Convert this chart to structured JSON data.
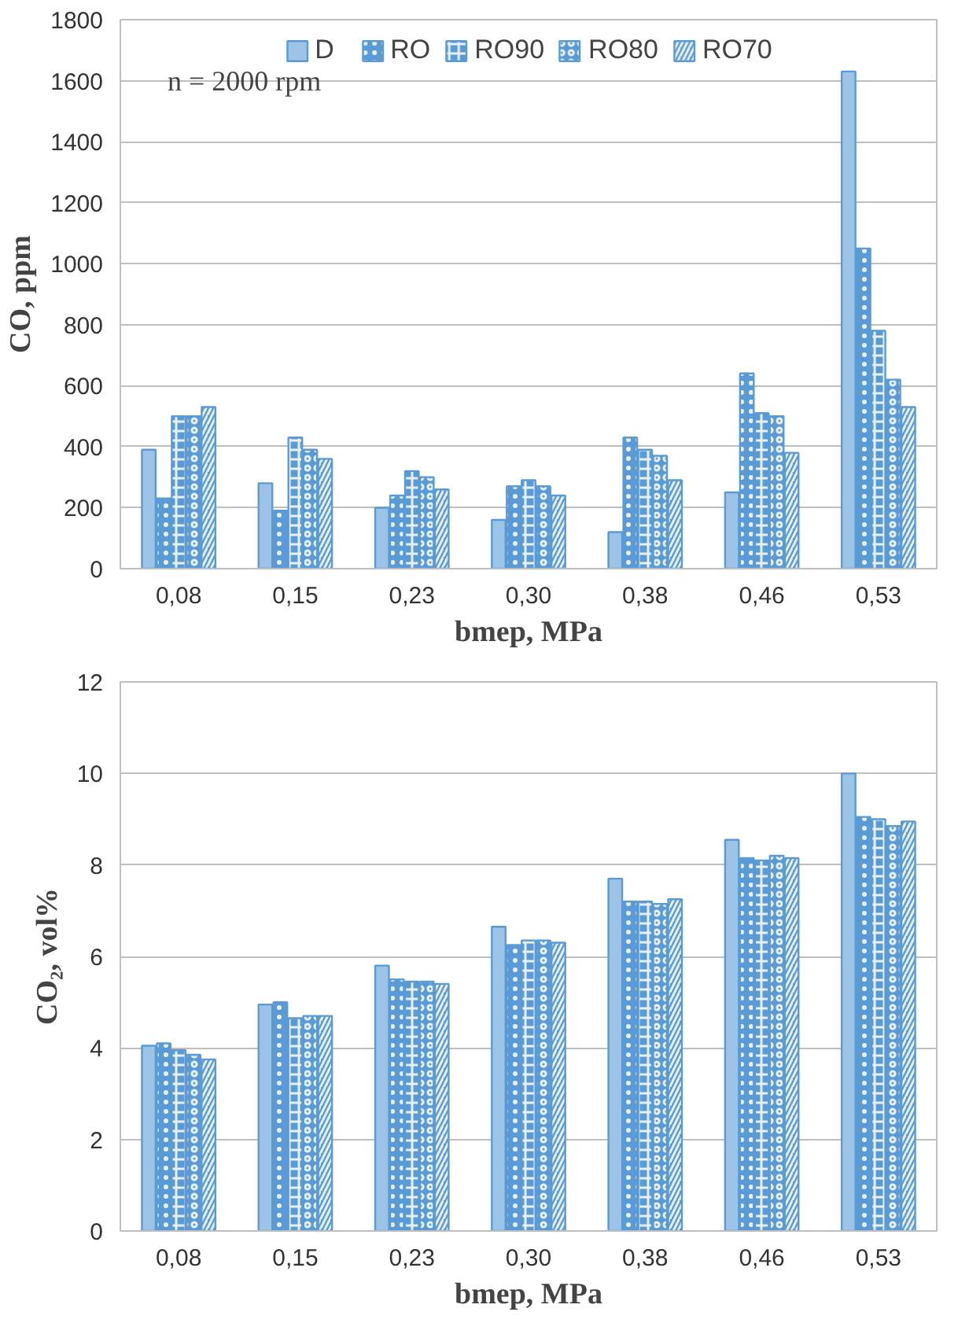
{
  "chart_data": [
    {
      "type": "bar",
      "ylabel": "CO, ppm",
      "xlabel": "bmep, MPa",
      "categories": [
        "0,08",
        "0,15",
        "0,23",
        "0,30",
        "0,38",
        "0,46",
        "0,53"
      ],
      "ylim": [
        0,
        1800
      ],
      "yticks": [
        0,
        200,
        400,
        600,
        800,
        1000,
        1200,
        1400,
        1600,
        1800
      ],
      "grid": "y",
      "legend": "top",
      "annotations": [
        "n = 2000 rpm"
      ],
      "series": [
        {
          "name": "D",
          "color": "#9dc3e6",
          "values": [
            390,
            280,
            200,
            160,
            120,
            250,
            1630
          ]
        },
        {
          "name": "RO",
          "color": "#5b9bd5",
          "values": [
            230,
            190,
            240,
            270,
            430,
            640,
            1050
          ]
        },
        {
          "name": "RO90",
          "color": "#5b9bd5",
          "values": [
            500,
            430,
            320,
            290,
            390,
            510,
            780
          ]
        },
        {
          "name": "RO80",
          "color": "#5b9bd5",
          "values": [
            500,
            390,
            300,
            270,
            370,
            500,
            620
          ]
        },
        {
          "name": "RO70",
          "color": "#5b9bd5",
          "values": [
            530,
            360,
            260,
            240,
            290,
            380,
            530
          ]
        }
      ]
    },
    {
      "type": "bar",
      "ylabel": "CO₂, vol%",
      "xlabel": "bmep, MPa",
      "categories": [
        "0,08",
        "0,15",
        "0,23",
        "0,30",
        "0,38",
        "0,46",
        "0,53"
      ],
      "ylim": [
        0,
        12
      ],
      "yticks": [
        0,
        2,
        4,
        6,
        8,
        10,
        12
      ],
      "grid": "y",
      "series": [
        {
          "color": "#9dc3e6",
          "values": [
            4.05,
            4.95,
            5.8,
            6.65,
            7.7,
            8.55,
            10.0
          ]
        },
        {
          "color": "#5b9bd5",
          "values": [
            4.1,
            5.0,
            5.5,
            6.25,
            7.2,
            8.15,
            9.05
          ]
        },
        {
          "color": "#5b9bd5",
          "values": [
            3.95,
            4.65,
            5.45,
            6.35,
            7.2,
            8.1,
            9.0
          ]
        },
        {
          "color": "#5b9bd5",
          "values": [
            3.85,
            4.7,
            5.45,
            6.35,
            7.15,
            8.2,
            8.85
          ]
        },
        {
          "color": "#5b9bd5",
          "values": [
            3.75,
            4.7,
            5.4,
            6.3,
            7.25,
            8.15,
            8.95
          ]
        }
      ]
    }
  ]
}
